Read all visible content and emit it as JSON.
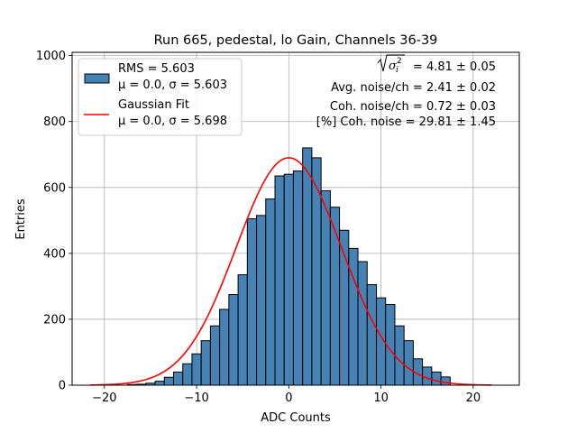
{
  "chart_data": {
    "type": "bar",
    "title": "Run 665, pedestal, lo Gain, Channels 36-39",
    "xlabel": "ADC Counts",
    "ylabel": "Entries",
    "xlim": [
      -23.5,
      25
    ],
    "ylim": [
      0,
      1010
    ],
    "xticks": [
      -20,
      -10,
      0,
      10,
      20
    ],
    "xtick_labels": [
      "−20",
      "−10",
      "0",
      "10",
      "20"
    ],
    "yticks": [
      0,
      200,
      400,
      600,
      800,
      1000
    ],
    "grid": true,
    "bin_width": 1,
    "bin_centers": [
      -17,
      -16,
      -15,
      -14,
      -13,
      -12,
      -11,
      -10,
      -9,
      -8,
      -7,
      -6,
      -5,
      -4,
      -3,
      -2,
      -1,
      0,
      1,
      2,
      3,
      4,
      5,
      6,
      7,
      8,
      9,
      10,
      11,
      12,
      13,
      14,
      15,
      16,
      17
    ],
    "counts": [
      2,
      3,
      6,
      12,
      24,
      40,
      65,
      95,
      135,
      180,
      230,
      275,
      335,
      505,
      515,
      565,
      635,
      640,
      650,
      720,
      690,
      590,
      540,
      470,
      415,
      375,
      305,
      265,
      245,
      180,
      135,
      80,
      55,
      40,
      25
    ],
    "histogram_color": "#4682b4",
    "fit": {
      "name": "Gaussian Fit",
      "mu": 0.0,
      "sigma": 5.698,
      "amplitude": 690,
      "x_range": [
        -21.5,
        22
      ],
      "color": "#ff0000"
    },
    "legend": {
      "location": "upper-left",
      "entries": [
        {
          "line1": "RMS = 5.603",
          "line2": "μ = 0.0, σ = 5.603",
          "kind": "patch"
        },
        {
          "line1": "Gaussian Fit",
          "line2": "μ = 0.0, σ = 5.698",
          "kind": "line"
        }
      ]
    },
    "annotations": [
      {
        "label": "sqrt(sigma_i^2)",
        "value": "= 4.81 ± 0.05"
      },
      {
        "label": "",
        "value": "Avg. noise/ch = 2.41 ± 0.02"
      },
      {
        "label": "",
        "value": "Coh. noise/ch = 0.72 ± 0.03"
      },
      {
        "label": "",
        "value": "[%] Coh. noise = 29.81 ± 1.45"
      }
    ]
  }
}
